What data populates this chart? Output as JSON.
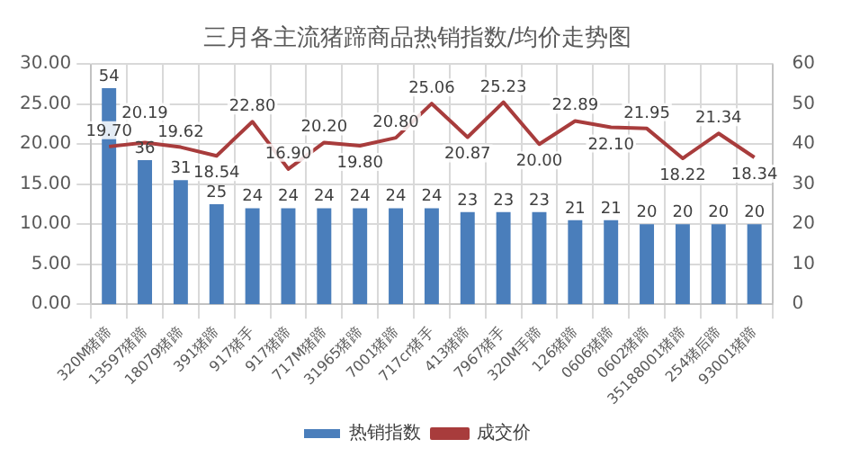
{
  "chart_data": {
    "type": "bar",
    "title": "三月各主流猪蹄商品热销指数/均价走势图",
    "categories": [
      "320M猪蹄",
      "13597猪蹄",
      "18079猪蹄",
      "391猪蹄",
      "917猪手",
      "917猪蹄",
      "717M猪蹄",
      "31965猪蹄",
      "7001猪蹄",
      "717cr猪手",
      "413猪蹄",
      "7967猪手",
      "320M手蹄",
      "126猪蹄",
      "0606猪蹄",
      "0602猪蹄",
      "35188001猪蹄",
      "254猪后蹄",
      "93001猪蹄"
    ],
    "series": [
      {
        "name": "热销指数",
        "axis": "y2",
        "color": "#4a7ebb",
        "values": [
          54,
          36,
          31,
          25,
          24,
          24,
          24,
          24,
          24,
          24,
          23,
          23,
          23,
          21,
          21,
          20,
          20,
          20,
          20
        ],
        "value_labels": [
          "54",
          "36",
          "31",
          "25",
          "24",
          "24",
          "24",
          "24",
          "24",
          "24",
          "23",
          "23",
          "23",
          "21",
          "21",
          "20",
          "20",
          "20",
          "20"
        ]
      },
      {
        "name": "成交价",
        "type": "line",
        "axis": "y",
        "color": "#a83c3c",
        "values": [
          19.7,
          20.19,
          19.62,
          18.54,
          22.8,
          16.9,
          20.2,
          19.8,
          20.8,
          25.06,
          20.87,
          25.23,
          20.0,
          22.89,
          22.1,
          21.95,
          18.22,
          21.34,
          18.34
        ],
        "value_labels": [
          "19.70",
          "20.19",
          "19.62",
          "18.54",
          "22.80",
          "16.90",
          "20.20",
          "19.80",
          "20.80",
          "25.06",
          "20.87",
          "25.23",
          "20.00",
          "22.89",
          "22.10",
          "21.95",
          "18.22",
          "21.34",
          "18.34"
        ]
      }
    ],
    "ylim": [
      0,
      30
    ],
    "yticks": [
      {
        "value": 0,
        "label": "0.00"
      },
      {
        "value": 5,
        "label": "5.00"
      },
      {
        "value": 10,
        "label": "10.00"
      },
      {
        "value": 15,
        "label": "15.00"
      },
      {
        "value": 20,
        "label": "20.00"
      },
      {
        "value": 25,
        "label": "25.00"
      },
      {
        "value": 30,
        "label": "30.00"
      }
    ],
    "y2lim": [
      0,
      60
    ],
    "y2ticks": [
      0,
      10,
      20,
      30,
      40,
      50,
      60
    ],
    "grid": true,
    "legend": "bottom",
    "marker": "none",
    "line_style": "solid"
  }
}
